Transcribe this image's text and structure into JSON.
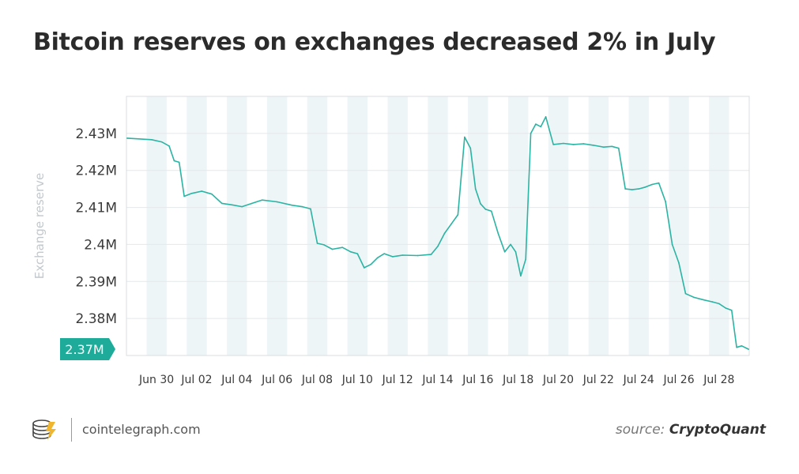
{
  "colors": {
    "line": "#2bb3a3",
    "label_bg": "#1eab9a",
    "band": "#eef5f7",
    "grid": "#e4e8ea",
    "tick_text": "#3a3a3a",
    "axis_label": "#c2c8cc"
  },
  "header": {
    "title": "Bitcoin reserves on exchanges decreased 2% in July"
  },
  "footer": {
    "logo_icon": "cointelegraph-coins-icon",
    "site": "cointelegraph.com",
    "source_label": "source:",
    "source_name": "CryptoQuant"
  },
  "chart_data": {
    "type": "line",
    "title": "Bitcoin reserves on exchanges decreased 2% in July",
    "ylabel": "Exchange reserve",
    "xlabel": "",
    "x_start": "Jun 29",
    "x_end": "Jul 29",
    "ylim": [
      2.37,
      2.44
    ],
    "y_ticks": [
      2.38,
      2.39,
      2.4,
      2.41,
      2.42,
      2.43
    ],
    "y_tick_labels": [
      "2.38M",
      "2.39M",
      "2.4M",
      "2.41M",
      "2.42M",
      "2.43M"
    ],
    "x_ticks": [
      "Jun 30",
      "Jul 02",
      "Jul 04",
      "Jul 06",
      "Jul 08",
      "Jul 10",
      "Jul 12",
      "Jul 14",
      "Jul 16",
      "Jul 18",
      "Jul 20",
      "Jul 22",
      "Jul 24",
      "Jul 26",
      "Jul 28"
    ],
    "grid": true,
    "last_value_label": "2.37M",
    "series": [
      {
        "x": [
          "Jun 29",
          "Jun 30",
          "Jun 30",
          "Jul 01",
          "Jul 01",
          "Jul 01",
          "Jul 01",
          "Jul 02",
          "Jul 02",
          "Jul 03",
          "Jul 03",
          "Jul 04",
          "Jul 04",
          "Jul 05",
          "Jul 05",
          "Jul 06",
          "Jul 07",
          "Jul 07",
          "Jul 08",
          "Jul 08",
          "Jul 08",
          "Jul 09",
          "Jul 09",
          "Jul 10",
          "Jul 10",
          "Jul 10",
          "Jul 11",
          "Jul 11",
          "Jul 11",
          "Jul 12",
          "Jul 12",
          "Jul 13",
          "Jul 14",
          "Jul 14",
          "Jul 14",
          "Jul 15",
          "Jul 15",
          "Jul 15",
          "Jul 16",
          "Jul 16",
          "Jul 16",
          "Jul 16",
          "Jul 17",
          "Jul 17",
          "Jul 17",
          "Jul 18",
          "Jul 18",
          "Jul 18",
          "Jul 18",
          "Jul 19",
          "Jul 19",
          "Jul 19",
          "Jul 19",
          "Jul 20",
          "Jul 20",
          "Jul 21",
          "Jul 21",
          "Jul 22",
          "Jul 22",
          "Jul 23",
          "Jul 23",
          "Jul 23",
          "Jul 24",
          "Jul 24",
          "Jul 24",
          "Jul 25",
          "Jul 25",
          "Jul 25",
          "Jul 26",
          "Jul 26",
          "Jul 26",
          "Jul 27",
          "Jul 27",
          "Jul 28",
          "Jul 28",
          "Jul 28",
          "Jul 29",
          "Jul 29",
          "Jul 29",
          "Jul 29"
        ],
        "y": [
          2.4287,
          2.4283,
          2.4277,
          2.4266,
          2.4226,
          2.4222,
          2.413,
          2.4138,
          2.4144,
          2.4136,
          2.4111,
          2.4107,
          2.4102,
          2.4111,
          2.412,
          2.4115,
          2.4106,
          2.4102,
          2.4096,
          2.4003,
          2.3999,
          2.3987,
          2.3992,
          2.398,
          2.3975,
          2.3937,
          2.3946,
          2.3964,
          2.3975,
          2.3967,
          2.3971,
          2.397,
          2.3973,
          2.3995,
          2.403,
          2.4055,
          2.408,
          2.429,
          2.426,
          2.415,
          2.411,
          2.4095,
          2.409,
          2.403,
          2.398,
          2.4,
          2.398,
          2.3915,
          2.396,
          2.43,
          2.4325,
          2.4318,
          2.4345,
          2.427,
          2.4273,
          2.427,
          2.4272,
          2.4268,
          2.4263,
          2.4265,
          2.426,
          2.415,
          2.4148,
          2.415,
          2.4155,
          2.4162,
          2.4166,
          2.4116,
          2.4,
          2.395,
          2.3867,
          2.3857,
          2.385,
          2.3845,
          2.384,
          2.3828,
          2.3822,
          2.3722,
          2.3726,
          2.3717
        ]
      }
    ]
  }
}
